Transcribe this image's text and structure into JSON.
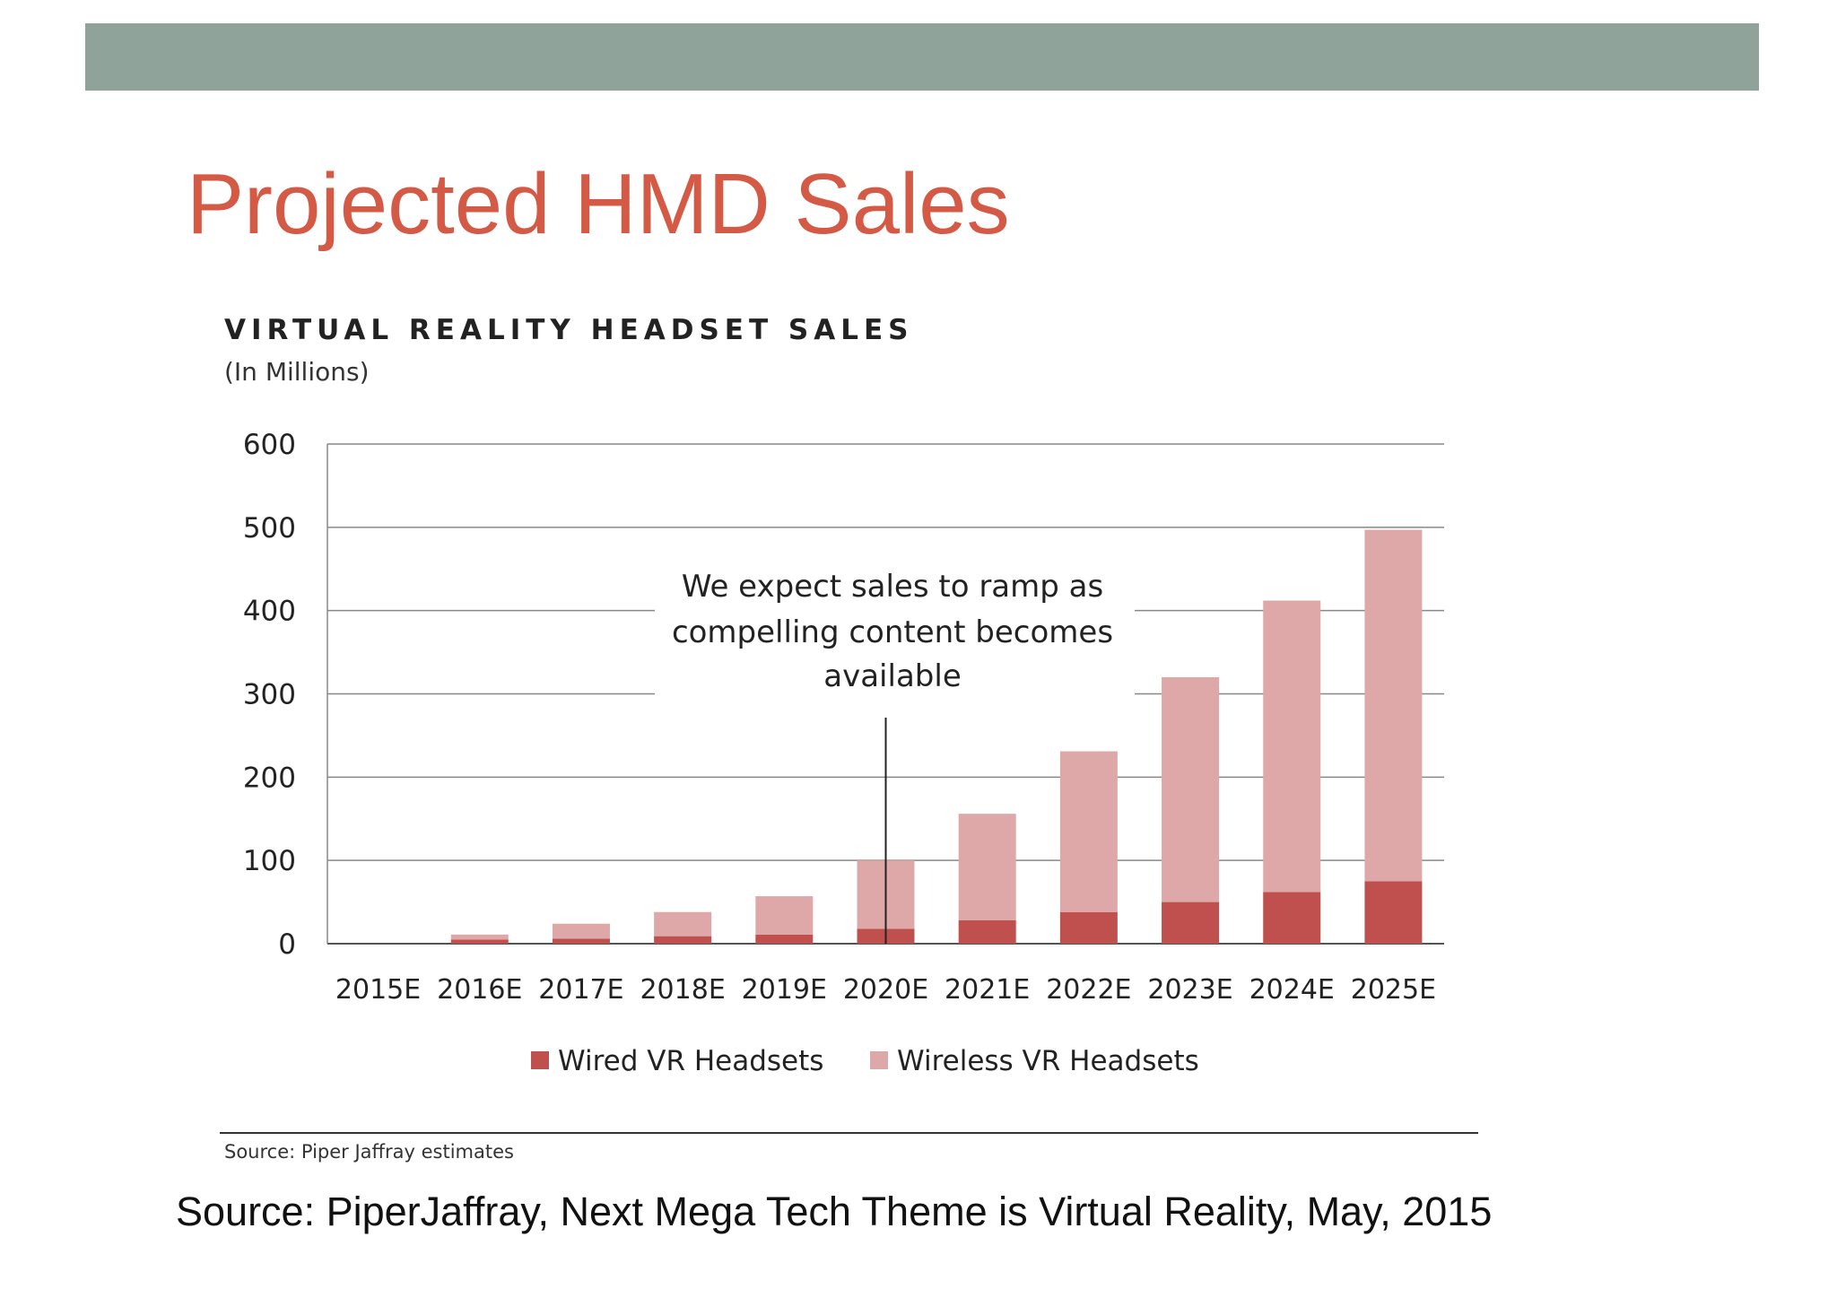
{
  "slide": {
    "title": "Projected HMD Sales",
    "source": "Source: PiperJaffray, Next Mega Tech Theme is Virtual Reality, May, 2015",
    "bar_color": "#8fa39a",
    "title_color": "#d45a45"
  },
  "chart_data": {
    "type": "bar",
    "stacked": true,
    "title": "VIRTUAL REALITY HEADSET SALES",
    "subtitle": "(In Millions)",
    "categories": [
      "2015E",
      "2016E",
      "2017E",
      "2018E",
      "2019E",
      "2020E",
      "2021E",
      "2022E",
      "2023E",
      "2024E",
      "2025E"
    ],
    "series": [
      {
        "name": "Wired VR Headsets",
        "color": "#c0504d",
        "values": [
          0,
          5,
          6,
          9,
          11,
          18,
          28,
          38,
          50,
          62,
          75
        ]
      },
      {
        "name": "Wireless VR Headsets",
        "color": "#dea8a8",
        "values": [
          0,
          6,
          18,
          29,
          46,
          82,
          128,
          193,
          270,
          350,
          422
        ]
      }
    ],
    "yticks": [
      0,
      100,
      200,
      300,
      400,
      500,
      600
    ],
    "ylim": [
      0,
      600
    ],
    "legend_position": "bottom",
    "grid": true,
    "annotation": {
      "lines": [
        "We expect sales to ramp as",
        "compelling content becomes",
        "available"
      ],
      "category": "2020E"
    },
    "source": "Source: Piper Jaffray estimates"
  }
}
